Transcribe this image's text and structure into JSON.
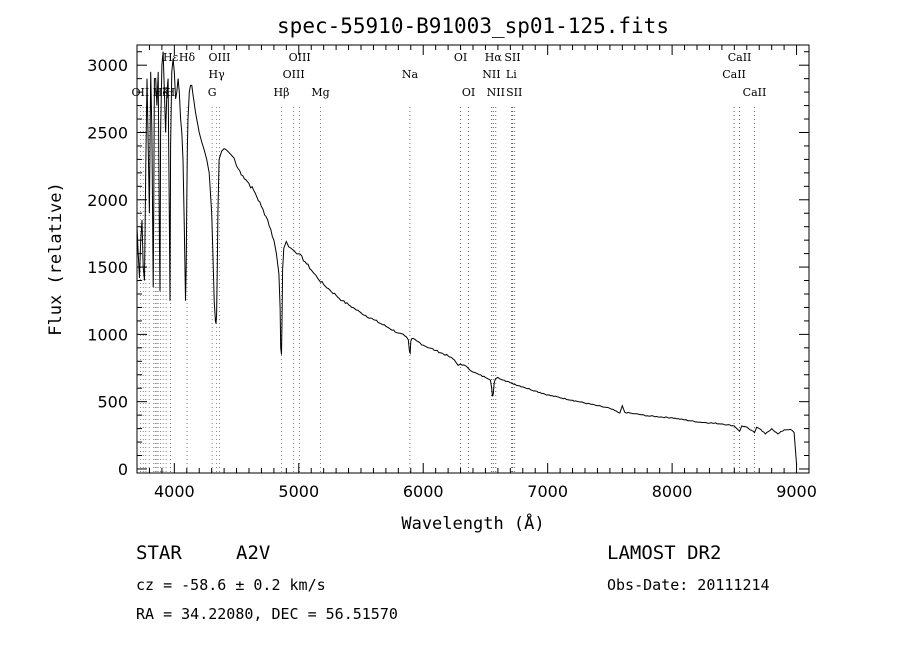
{
  "chart_data": {
    "type": "line",
    "title": "spec-55910-B91003_sp01-125.fits",
    "xlabel": "Wavelength (Å)",
    "ylabel": "Flux (relative)",
    "xlim": [
      3700,
      9100
    ],
    "ylim": [
      -30,
      3150
    ],
    "x_ticks": [
      4000,
      5000,
      6000,
      7000,
      8000,
      9000
    ],
    "y_ticks": [
      0,
      500,
      1000,
      1500,
      2000,
      2500,
      3000
    ],
    "grid": false,
    "series": [
      {
        "values_x": [
          3700,
          3710,
          3720,
          3730,
          3740,
          3750,
          3760,
          3770,
          3780,
          3790,
          3800,
          3810,
          3820,
          3830,
          3835,
          3840,
          3850,
          3860,
          3870,
          3880,
          3885,
          3890,
          3900,
          3910,
          3920,
          3930,
          3940,
          3950,
          3960,
          3965,
          3970,
          3980,
          3990,
          4000,
          4010,
          4020,
          4030,
          4040,
          4050,
          4060,
          4070,
          4080,
          4090,
          4095,
          4100,
          4105,
          4110,
          4120,
          4130,
          4140,
          4150,
          4160,
          4170,
          4180,
          4190,
          4200,
          4220,
          4240,
          4260,
          4280,
          4300,
          4310,
          4320,
          4330,
          4335,
          4340,
          4345,
          4350,
          4360,
          4380,
          4400,
          4420,
          4440,
          4460,
          4480,
          4500,
          4550,
          4600,
          4650,
          4700,
          4750,
          4800,
          4820,
          4840,
          4850,
          4855,
          4861,
          4866,
          4870,
          4880,
          4900,
          4920,
          4950,
          5000,
          5050,
          5100,
          5150,
          5200,
          5250,
          5300,
          5350,
          5400,
          5450,
          5500,
          5600,
          5700,
          5800,
          5850,
          5880,
          5890,
          5895,
          5900,
          5910,
          5950,
          6000,
          6100,
          6200,
          6250,
          6280,
          6300,
          6350,
          6400,
          6450,
          6500,
          6520,
          6540,
          6550,
          6556,
          6563,
          6570,
          6580,
          6600,
          6650,
          6700,
          6800,
          6900,
          7000,
          7200,
          7400,
          7500,
          7580,
          7600,
          7620,
          7700,
          7800,
          8000,
          8200,
          8400,
          8500,
          8542,
          8560,
          8600,
          8662,
          8680,
          8700,
          8750,
          8800,
          8850,
          8900,
          8950,
          8980,
          9000
        ],
        "values_y": [
          1800,
          1600,
          1420,
          1700,
          1850,
          1500,
          1400,
          2200,
          2900,
          2400,
          1900,
          2950,
          2500,
          1350,
          2000,
          2900,
          2900,
          2700,
          2950,
          1700,
          1320,
          2500,
          3000,
          3100,
          2800,
          2500,
          2800,
          2900,
          1800,
          1250,
          2400,
          2950,
          3050,
          2950,
          2750,
          2800,
          2900,
          2800,
          2600,
          2500,
          2300,
          1800,
          1250,
          1500,
          2000,
          2400,
          2600,
          2800,
          2850,
          2850,
          2780,
          2720,
          2650,
          2600,
          2550,
          2500,
          2430,
          2370,
          2300,
          2200,
          1900,
          1600,
          1250,
          1100,
          1080,
          1150,
          1500,
          1900,
          2300,
          2360,
          2380,
          2370,
          2350,
          2330,
          2310,
          2250,
          2180,
          2120,
          2050,
          1950,
          1850,
          1700,
          1600,
          1450,
          1200,
          900,
          850,
          1150,
          1480,
          1640,
          1690,
          1650,
          1630,
          1600,
          1540,
          1480,
          1420,
          1370,
          1330,
          1290,
          1250,
          1220,
          1190,
          1160,
          1110,
          1060,
          1010,
          990,
          960,
          870,
          860,
          950,
          970,
          950,
          920,
          880,
          840,
          810,
          770,
          780,
          760,
          720,
          700,
          680,
          670,
          660,
          600,
          540,
          560,
          640,
          670,
          680,
          660,
          640,
          610,
          580,
          550,
          510,
          470,
          450,
          415,
          470,
          420,
          410,
          395,
          380,
          350,
          335,
          320,
          280,
          320,
          310,
          270,
          310,
          300,
          260,
          300,
          260,
          290,
          295,
          270,
          30
        ]
      }
    ],
    "spectral_lines": [
      {
        "label": "Hε",
        "wavelength": 3970,
        "row": 0
      },
      {
        "label": "Hδ",
        "wavelength": 4102,
        "row": 0
      },
      {
        "label": "OIII",
        "wavelength": 4363,
        "row": 0
      },
      {
        "label": "OIII",
        "wavelength": 5007,
        "row": 0
      },
      {
        "label": "OI",
        "wavelength": 6300,
        "row": 0
      },
      {
        "label": "Hα",
        "wavelength": 6563,
        "row": 0
      },
      {
        "label": "SII",
        "wavelength": 6717,
        "row": 0
      },
      {
        "label": "CaII",
        "wavelength": 8542,
        "row": 0
      },
      {
        "label": "Hγ",
        "wavelength": 4340,
        "row": 1
      },
      {
        "label": "OIII",
        "wavelength": 4959,
        "row": 1
      },
      {
        "label": "Na",
        "wavelength": 5893,
        "row": 1
      },
      {
        "label": "NII",
        "wavelength": 6548,
        "row": 1
      },
      {
        "label": "Li",
        "wavelength": 6708,
        "row": 1
      },
      {
        "label": "CaII",
        "wavelength": 8498,
        "row": 1
      },
      {
        "label": "OII",
        "wavelength": 3727,
        "row": 2
      },
      {
        "label": "Hζ",
        "wavelength": 3889,
        "row": 2
      },
      {
        "label": "K",
        "wavelength": 3934,
        "row": 2
      },
      {
        "label": "H",
        "wavelength": 3969,
        "row": 2
      },
      {
        "label": "G",
        "wavelength": 4304,
        "row": 2
      },
      {
        "label": "Hβ",
        "wavelength": 4861,
        "row": 2
      },
      {
        "label": "Mg",
        "wavelength": 5175,
        "row": 2
      },
      {
        "label": "OI",
        "wavelength": 6364,
        "row": 2
      },
      {
        "label": "NII",
        "wavelength": 6583,
        "row": 2
      },
      {
        "label": "SII",
        "wavelength": 6731,
        "row": 2
      },
      {
        "label": "CaII",
        "wavelength": 8662,
        "row": 2
      }
    ],
    "extra_marker_lines": [
      3750,
      3771,
      3798,
      3835,
      3848,
      3860,
      3870,
      3910
    ],
    "info": {
      "object_class": "STAR",
      "subclass": "A2V",
      "survey": "LAMOST DR2",
      "redshift": "cz = -58.6 ± 0.2 km/s",
      "obs_date": "Obs-Date: 20111214",
      "coords": "RA =  34.22080, DEC =  56.51570"
    },
    "colors": {
      "spectrum": "#000000",
      "emission_marker": "#cc0000",
      "absorption_marker": "#666666"
    }
  }
}
